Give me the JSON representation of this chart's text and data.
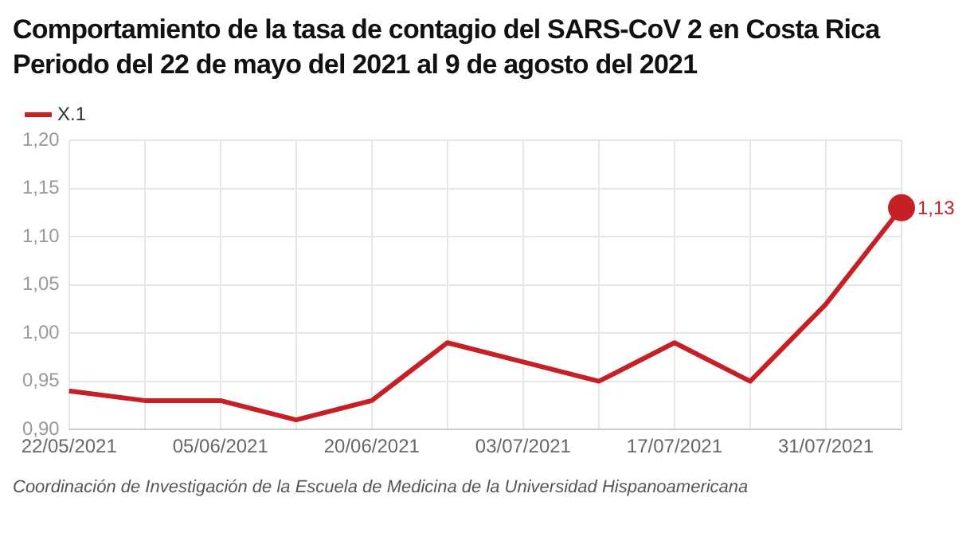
{
  "chart_data": {
    "type": "line",
    "title": "Comportamiento de la tasa de contagio del SARS-CoV 2 en Costa Rica",
    "subtitle": "Periodo del 22 de mayo del 2021 al 9 de agosto del 2021",
    "categories": [
      "22/05/2021",
      null,
      "05/06/2021",
      null,
      "20/06/2021",
      null,
      "03/07/2021",
      null,
      "17/07/2021",
      null,
      "31/07/2021",
      null
    ],
    "series": [
      {
        "name": "X.1",
        "color": "#c42026",
        "values": [
          0.94,
          0.93,
          0.93,
          0.91,
          0.93,
          0.99,
          0.97,
          0.95,
          0.99,
          0.95,
          1.03,
          1.13
        ],
        "value_labels": [
          null,
          null,
          null,
          null,
          null,
          null,
          null,
          null,
          null,
          null,
          null,
          "1,13"
        ]
      }
    ],
    "ylim": [
      0.9,
      1.2
    ],
    "yticks": [
      {
        "value": 0.9,
        "label": "0,90"
      },
      {
        "value": 0.95,
        "label": "0,95"
      },
      {
        "value": 1.0,
        "label": "1,00"
      },
      {
        "value": 1.05,
        "label": "1,05"
      },
      {
        "value": 1.1,
        "label": "1,10"
      },
      {
        "value": 1.15,
        "label": "1,15"
      },
      {
        "value": 1.2,
        "label": "1,20"
      }
    ],
    "grid": true,
    "legend": "top left",
    "marker": "none",
    "line_style": "solid",
    "annotations": [
      "Coordinación de Investigación de la Escuela de Medicina de la Universidad Hispanoamericana"
    ]
  }
}
